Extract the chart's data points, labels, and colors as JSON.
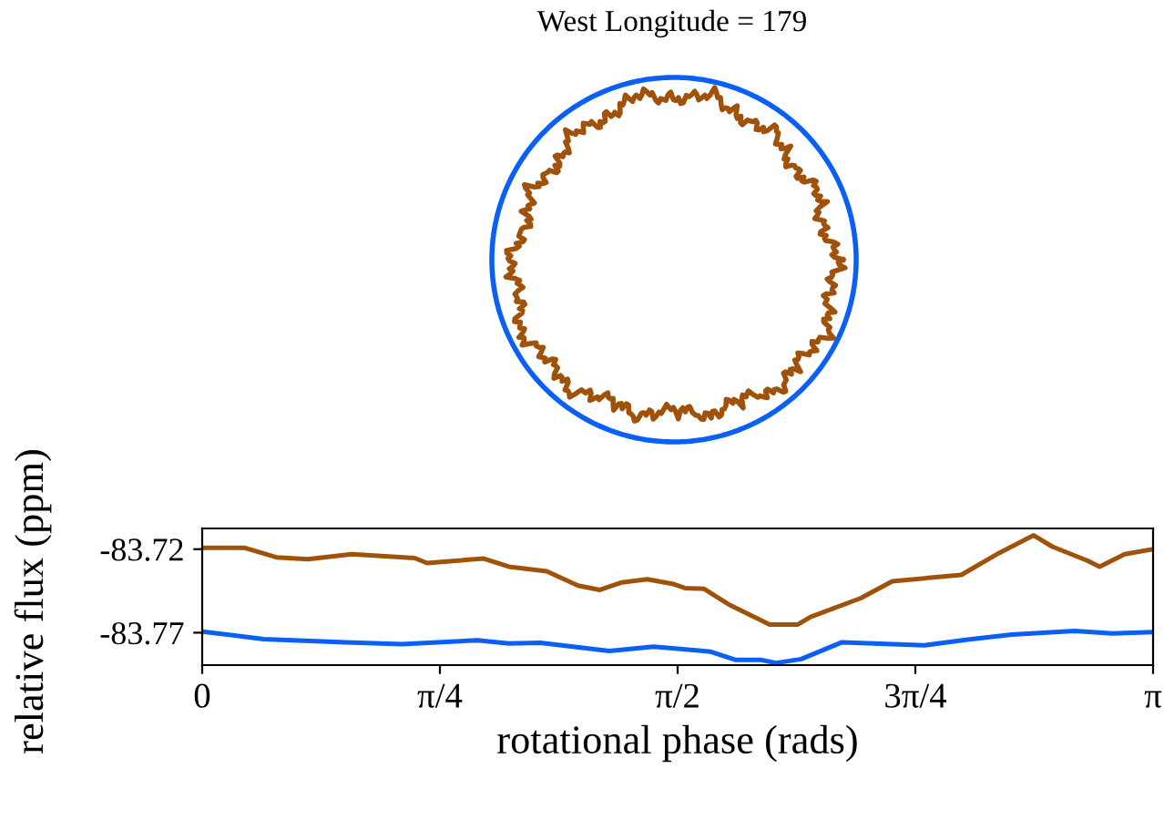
{
  "chart_data": {
    "type": "line",
    "title": "West Longitude = 179",
    "xlabel": "rotational phase (rads)",
    "ylabel": "relative flux (ppm)",
    "xlim": [
      0,
      3.1416
    ],
    "xticks": [
      {
        "value": 0,
        "label": "0"
      },
      {
        "value": 0.7854,
        "label": "π/4"
      },
      {
        "value": 1.5708,
        "label": "π/2"
      },
      {
        "value": 2.3562,
        "label": "3π/4"
      },
      {
        "value": 3.1416,
        "label": "π"
      }
    ],
    "ylim": [
      -83.7894,
      -83.7076
    ],
    "yticks": [
      {
        "value": -83.72,
        "label": "-83.72"
      },
      {
        "value": -83.77,
        "label": "-83.77"
      }
    ],
    "grid": false,
    "series": [
      {
        "color": "#a0520a",
        "x": [
          0,
          0.141,
          0.245,
          0.349,
          0.494,
          0.702,
          0.743,
          0.93,
          1.013,
          1.138,
          1.242,
          1.314,
          1.387,
          1.47,
          1.553,
          1.595,
          1.657,
          1.74,
          1.875,
          1.968,
          2.01,
          2.176,
          2.28,
          2.508,
          2.633,
          2.747,
          2.809,
          2.924,
          2.965,
          3.048,
          3.1416
        ],
        "values": [
          -83.7192,
          -83.7192,
          -83.7249,
          -83.726,
          -83.723,
          -83.7253,
          -83.7283,
          -83.7256,
          -83.7305,
          -83.7332,
          -83.7418,
          -83.7444,
          -83.7399,
          -83.738,
          -83.7407,
          -83.7433,
          -83.7437,
          -83.7531,
          -83.7651,
          -83.7651,
          -83.7606,
          -83.7493,
          -83.7392,
          -83.7354,
          -83.7223,
          -83.7117,
          -83.7185,
          -83.7268,
          -83.7305,
          -83.723,
          -83.72
        ]
      },
      {
        "color": "#0a5ff5",
        "x": [
          0,
          0.203,
          0.473,
          0.66,
          0.909,
          1.013,
          1.117,
          1.345,
          1.491,
          1.678,
          1.761,
          1.844,
          1.896,
          1.979,
          2.114,
          2.384,
          2.529,
          2.674,
          2.882,
          3.007,
          3.1416
        ],
        "values": [
          -83.7693,
          -83.7738,
          -83.7757,
          -83.7768,
          -83.7745,
          -83.7764,
          -83.776,
          -83.7809,
          -83.7783,
          -83.7813,
          -83.7862,
          -83.7862,
          -83.7881,
          -83.7858,
          -83.7757,
          -83.7776,
          -83.7741,
          -83.7711,
          -83.7689,
          -83.7704,
          -83.7696
        ]
      }
    ]
  }
}
